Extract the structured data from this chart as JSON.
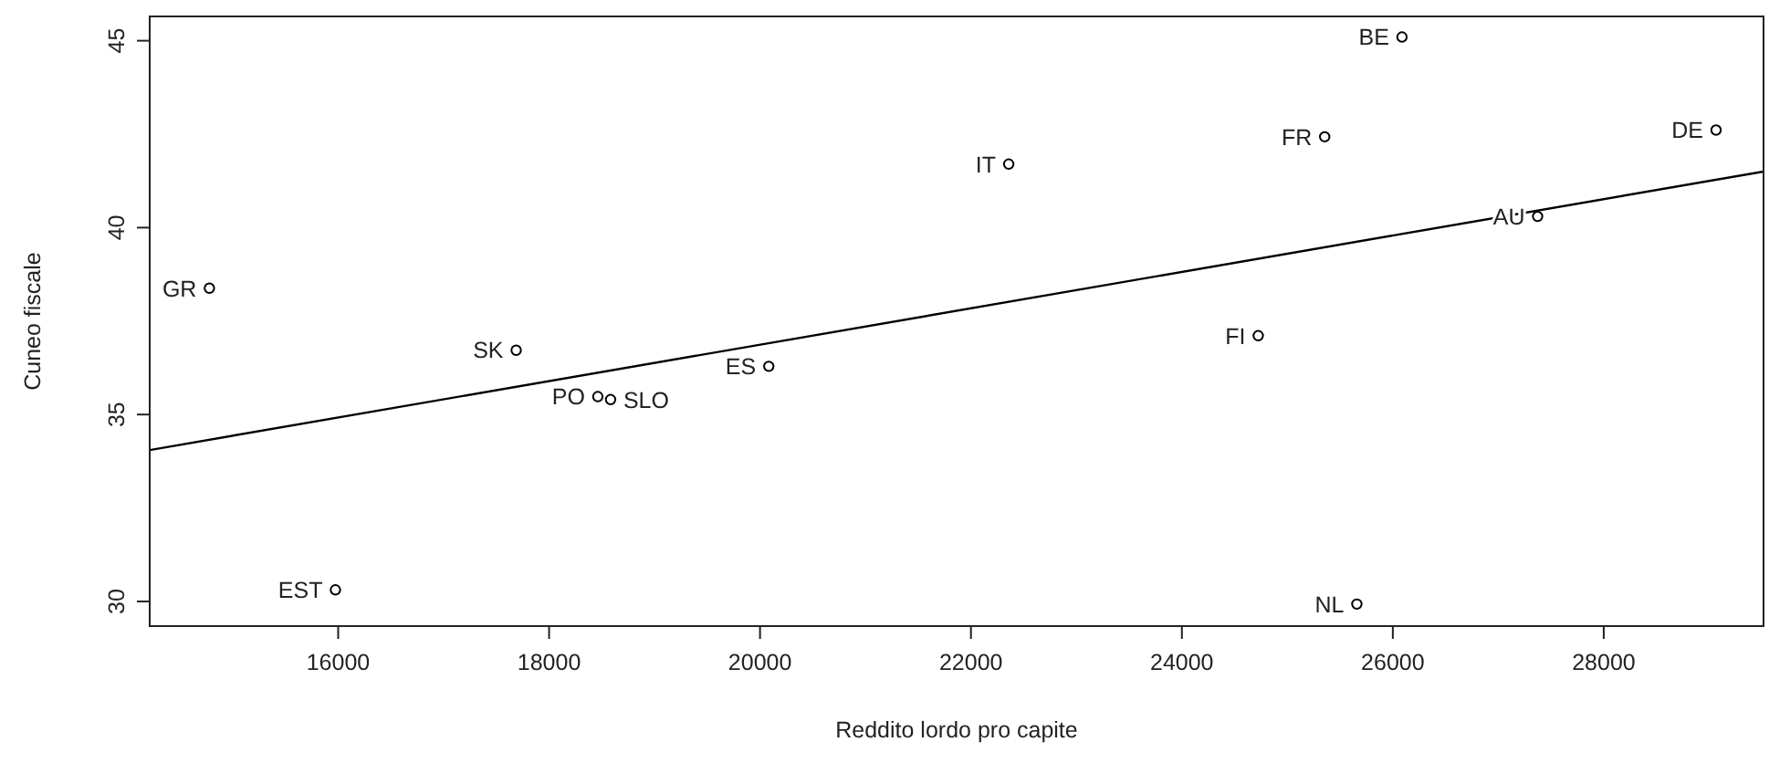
{
  "chart_data": {
    "type": "scatter",
    "xlabel": "Reddito lordo pro capite",
    "ylabel": "Cuneo fiscale",
    "xlim": [
      14213,
      29515
    ],
    "ylim": [
      29.34,
      45.65
    ],
    "xticks": [
      16000,
      18000,
      20000,
      22000,
      24000,
      26000,
      28000
    ],
    "yticks": [
      30,
      35,
      40,
      45
    ],
    "grid": false,
    "series": [
      {
        "color": "#000000",
        "marker": "circle",
        "x": [
          14779,
          17688,
          18462,
          18583,
          20083,
          15974,
          22358,
          25354,
          26087,
          29065,
          27373,
          24724,
          25659
        ],
        "values": [
          38.38,
          36.72,
          35.48,
          35.4,
          36.29,
          30.31,
          41.7,
          42.43,
          45.1,
          42.61,
          40.3,
          37.11,
          29.93
        ],
        "value_labels": [
          "GR",
          "SK",
          "PO",
          "SLO",
          "ES",
          "EST",
          "IT",
          "FR",
          "BE",
          "DE",
          "AU",
          "FI",
          "NL"
        ]
      },
      {
        "type": "line",
        "color": "#000000",
        "marker": "none",
        "line_style": "solid",
        "x": [
          14213,
          29515
        ],
        "values": [
          34.05,
          41.5
        ]
      }
    ]
  }
}
